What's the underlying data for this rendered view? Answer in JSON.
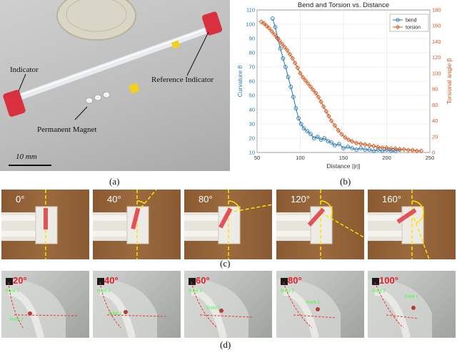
{
  "panel_a": {
    "labels": {
      "indicator": "Indicator",
      "reference_indicator": "Reference Indicator",
      "permanent_magnet": "Permanent Magnet",
      "scale_bar": "10 mm"
    },
    "caption": "(a)"
  },
  "panel_b": {
    "caption": "(b)"
  },
  "panel_c": {
    "angles": [
      "0°",
      "40°",
      "80°",
      "120°",
      "160°"
    ],
    "caption": "(c)"
  },
  "panel_d": {
    "angles": [
      "20°",
      "40°",
      "60°",
      "80°",
      "100°"
    ],
    "point1": "Point 1",
    "point2": "Point 2",
    "caption": "(d)"
  },
  "chart_data": {
    "type": "line",
    "title": "Bend and Torsion vs. Distance",
    "xlabel": "Distance ||r||",
    "ylabel_left": "Curvature θ",
    "ylabel_right": "Torsional angle β",
    "xlim": [
      50,
      250
    ],
    "ylim_left": [
      10,
      110
    ],
    "ylim_right": [
      0,
      180
    ],
    "x_ticks": [
      "50",
      "100",
      "150",
      "200",
      "250"
    ],
    "y_left_ticks": [
      "10",
      "20",
      "30",
      "40",
      "50",
      "60",
      "70",
      "80",
      "90",
      "100",
      "110"
    ],
    "y_right_ticks": [
      "0",
      "20",
      "40",
      "60",
      "80",
      "100",
      "120",
      "140",
      "160",
      "180"
    ],
    "grid": true,
    "legend": "top-right",
    "series": [
      {
        "name": "bend",
        "axis": "left",
        "color": "#1f77b4",
        "marker": "circle",
        "x": [
          68,
          71,
          74,
          77,
          80,
          83,
          86,
          89,
          92,
          95,
          98,
          101,
          104,
          108,
          112,
          116,
          120,
          124,
          128,
          132,
          136,
          140,
          145,
          150,
          155,
          160,
          165,
          170,
          175,
          180,
          185,
          190,
          195,
          200,
          205,
          210,
          215
        ],
        "y": [
          104,
          98,
          90,
          83,
          76,
          70,
          63,
          56,
          49,
          41,
          34,
          30,
          27,
          25,
          23,
          20,
          21,
          19,
          20,
          18,
          17,
          15,
          16,
          13,
          14,
          13,
          12,
          13,
          12,
          12,
          11,
          12,
          11,
          12,
          11,
          11,
          12
        ]
      },
      {
        "name": "torsion",
        "axis": "right",
        "color": "#d95319",
        "marker": "diamond",
        "x": [
          55,
          58,
          61,
          64,
          67,
          70,
          73,
          76,
          79,
          82,
          85,
          88,
          91,
          94,
          97,
          100,
          103,
          106,
          109,
          112,
          115,
          118,
          121,
          124,
          127,
          130,
          133,
          136,
          140,
          144,
          148,
          152,
          156,
          160,
          165,
          170,
          175,
          180,
          185,
          190,
          195,
          200,
          205,
          210,
          215,
          220,
          225,
          230,
          235,
          240
        ],
        "y": [
          165,
          163,
          160,
          157,
          153,
          149,
          145,
          141,
          137,
          133,
          129,
          124,
          119,
          113,
          107,
          100,
          95,
          91,
          87,
          83,
          79,
          75,
          70,
          64,
          58,
          52,
          46,
          40,
          34,
          28,
          23,
          19,
          16,
          14,
          12,
          11,
          10,
          9,
          8,
          7,
          6,
          6,
          5,
          5,
          4,
          4,
          3,
          3,
          2,
          2
        ]
      }
    ]
  }
}
